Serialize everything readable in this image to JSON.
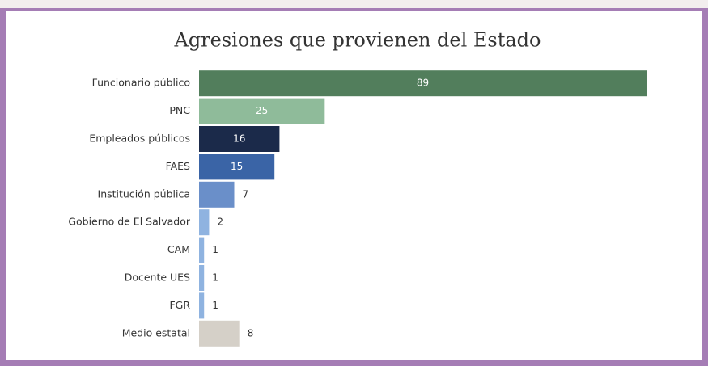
{
  "chart_data": {
    "type": "bar",
    "orientation": "horizontal",
    "title": "Agresiones que provienen del Estado",
    "categories": [
      "Funcionario público",
      "PNC",
      "Empleados públicos",
      "FAES",
      "Institución pública",
      "Gobierno de El Salvador",
      "CAM",
      "Docente UES",
      "FGR",
      "Medio estatal"
    ],
    "values": [
      89,
      25,
      16,
      15,
      7,
      2,
      1,
      1,
      1,
      8
    ],
    "colors": [
      "#527e5c",
      "#8fbb9a",
      "#1b2a4a",
      "#3a64a6",
      "#6a8fc9",
      "#8fb3e0",
      "#8fb3e0",
      "#8fb3e0",
      "#8fb3e0",
      "#d5d0c8"
    ]
  }
}
